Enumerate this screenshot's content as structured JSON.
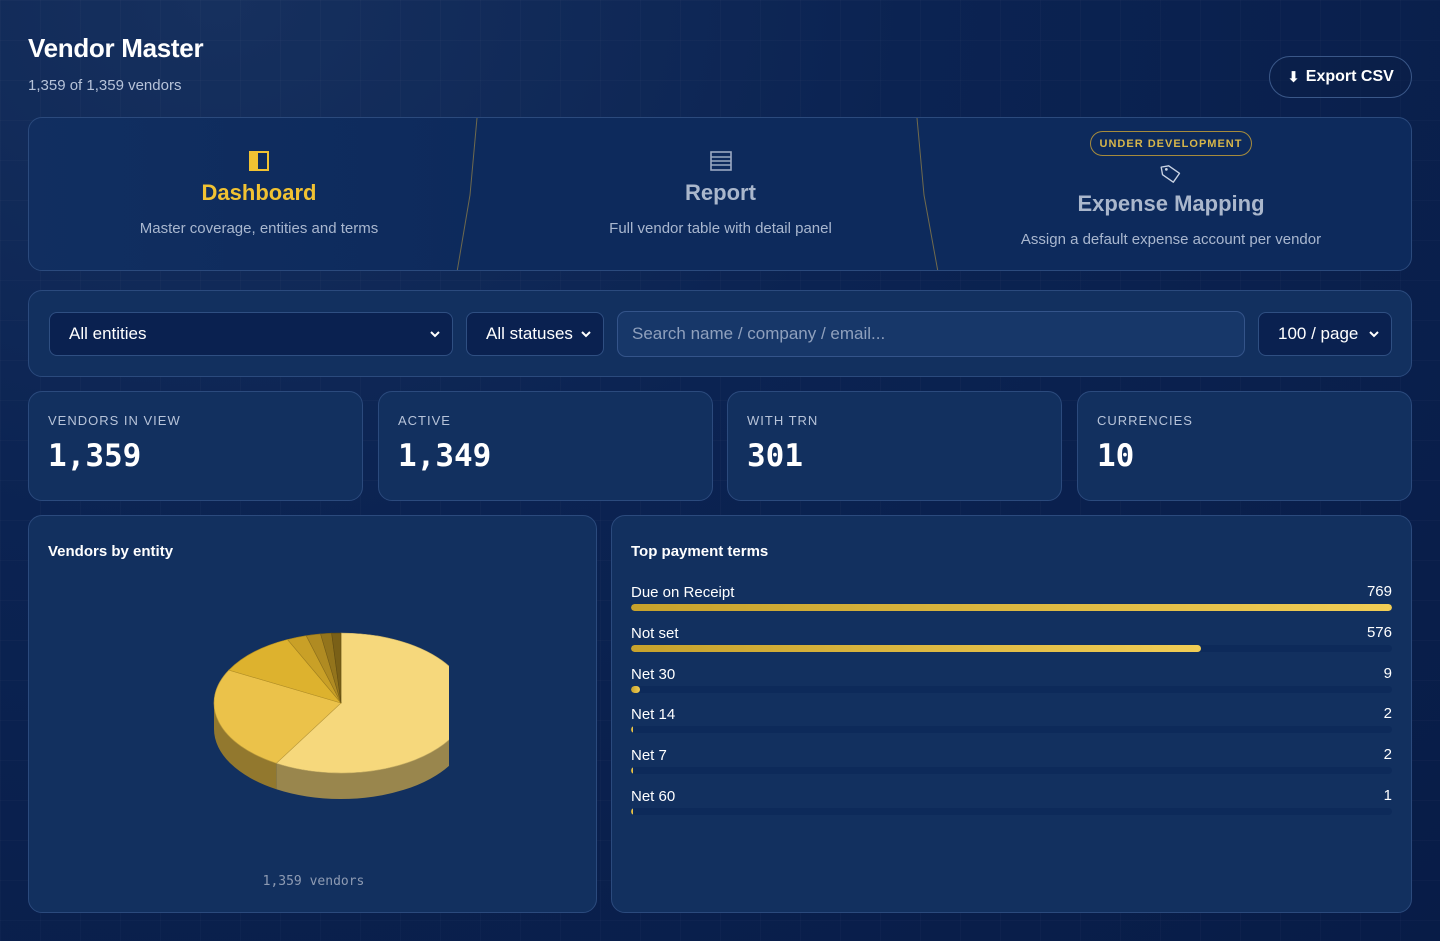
{
  "header": {
    "title": "Vendor Master",
    "subtitle": "1,359 of 1,359 vendors",
    "export_label": "Export CSV",
    "export_icon": "download-arrow-icon"
  },
  "tabs": [
    {
      "label": "Dashboard",
      "desc": "Master coverage, entities and terms",
      "icon": "layout-panel-icon",
      "active": true
    },
    {
      "label": "Report",
      "desc": "Full vendor table with detail panel",
      "icon": "list-document-icon",
      "active": false
    },
    {
      "label": "Expense Mapping",
      "desc": "Assign a default expense account per vendor",
      "icon": "tag-icon",
      "badge": "UNDER DEVELOPMENT",
      "active": false
    }
  ],
  "filters": {
    "entity": "All entities",
    "status": "All statuses",
    "search_placeholder": "Search name / company / email...",
    "page_size": "100 / page"
  },
  "stats": [
    {
      "label": "VENDORS IN VIEW",
      "value": "1,359"
    },
    {
      "label": "ACTIVE",
      "value": "1,349"
    },
    {
      "label": "WITH TRN",
      "value": "301"
    },
    {
      "label": "CURRENCIES",
      "value": "10"
    }
  ],
  "entity_panel": {
    "title": "Vendors by entity",
    "caption": "1,359 vendors"
  },
  "terms_panel": {
    "title": "Top payment terms"
  },
  "chart_data": [
    {
      "type": "pie",
      "title": "Vendors by entity",
      "total_label": "1,359 vendors",
      "values": [
        795,
        330,
        140,
        34,
        25,
        19,
        16
      ],
      "colors": [
        "#f6d87c",
        "#ebc24a",
        "#ddb22e",
        "#c9a027",
        "#b08b22",
        "#93741c",
        "#7a6017"
      ]
    },
    {
      "type": "bar",
      "title": "Top payment terms",
      "orientation": "horizontal",
      "categories": [
        "Due on Receipt",
        "Not set",
        "Net 30",
        "Net 14",
        "Net 7",
        "Net 60"
      ],
      "values": [
        769,
        576,
        9,
        2,
        2,
        1
      ]
    }
  ],
  "colors": {
    "accent": "#f1c232",
    "background": "#0b2352",
    "panel": "#12305f"
  }
}
